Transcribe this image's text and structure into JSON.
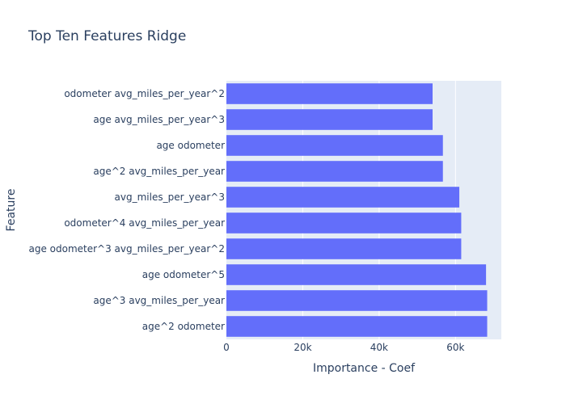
{
  "chart_data": {
    "type": "bar",
    "orientation": "horizontal",
    "title": "Top Ten Features Ridge",
    "xlabel": "Importance - Coef",
    "ylabel": "Feature",
    "categories": [
      "odometer avg_miles_per_year^2",
      "age avg_miles_per_year^3",
      "age odometer",
      "age^2 avg_miles_per_year",
      "avg_miles_per_year^3",
      "odometer^4 avg_miles_per_year",
      "age odometer^3 avg_miles_per_year^2",
      "age odometer^5",
      "age^3 avg_miles_per_year",
      "age^2 odometer"
    ],
    "values": [
      54000,
      54000,
      56700,
      56700,
      61000,
      61500,
      61500,
      68000,
      68300,
      68300
    ],
    "xlim": [
      0,
      72000
    ],
    "xticks": [
      0,
      20000,
      40000,
      60000
    ],
    "xtick_labels": [
      "0",
      "20k",
      "40k",
      "60k"
    ],
    "grid": true,
    "legend": "none",
    "colors": {
      "bar": "#636efa",
      "plot_bg": "#e5ecf6",
      "grid": "#ffffff",
      "text": "#2a3f5f"
    }
  }
}
